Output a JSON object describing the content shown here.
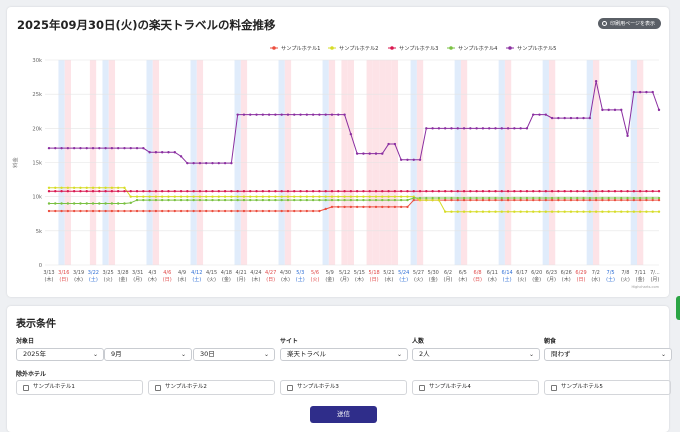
{
  "page": {
    "title": "2025年09月30日(火)の楽天トラベルの料金推移",
    "print_label": "印刷用ページを表示"
  },
  "chart_data": {
    "type": "line",
    "title": "",
    "ylabel": "料金",
    "ylim": [
      0,
      30000
    ],
    "yticks": [
      "0",
      "5k",
      "10k",
      "15k",
      "20k",
      "25k",
      "30k"
    ],
    "yvalues": [
      0,
      5000,
      10000,
      15000,
      20000,
      25000,
      30000
    ],
    "legend_position": "top",
    "credit": "Highcharts.com",
    "x_labels": [
      {
        "d": "3/13",
        "w": "木"
      },
      {
        "d": "3/16",
        "w": "日"
      },
      {
        "d": "3/19",
        "w": "水"
      },
      {
        "d": "3/22",
        "w": "土"
      },
      {
        "d": "3/25",
        "w": "火"
      },
      {
        "d": "3/28",
        "w": "金"
      },
      {
        "d": "3/31",
        "w": "月"
      },
      {
        "d": "4/3",
        "w": "木"
      },
      {
        "d": "4/6",
        "w": "日"
      },
      {
        "d": "4/9",
        "w": "水"
      },
      {
        "d": "4/12",
        "w": "土"
      },
      {
        "d": "4/15",
        "w": "火"
      },
      {
        "d": "4/18",
        "w": "金"
      },
      {
        "d": "4/21",
        "w": "月"
      },
      {
        "d": "4/24",
        "w": "木"
      },
      {
        "d": "4/27",
        "w": "日"
      },
      {
        "d": "4/30",
        "w": "水"
      },
      {
        "d": "5/3",
        "w": "土"
      },
      {
        "d": "5/6",
        "w": "火"
      },
      {
        "d": "5/9",
        "w": "金"
      },
      {
        "d": "5/12",
        "w": "月"
      },
      {
        "d": "5/15",
        "w": "木"
      },
      {
        "d": "5/18",
        "w": "日"
      },
      {
        "d": "5/21",
        "w": "水"
      },
      {
        "d": "5/24",
        "w": "土"
      },
      {
        "d": "5/27",
        "w": "火"
      },
      {
        "d": "5/30",
        "w": "金"
      },
      {
        "d": "6/2",
        "w": "月"
      },
      {
        "d": "6/5",
        "w": "木"
      },
      {
        "d": "6/8",
        "w": "日"
      },
      {
        "d": "6/11",
        "w": "水"
      },
      {
        "d": "6/14",
        "w": "土"
      },
      {
        "d": "6/17",
        "w": "火"
      },
      {
        "d": "6/20",
        "w": "金"
      },
      {
        "d": "6/23",
        "w": "月"
      },
      {
        "d": "6/26",
        "w": "木"
      },
      {
        "d": "6/29",
        "w": "日"
      },
      {
        "d": "7/2",
        "w": "水"
      },
      {
        "d": "7/5",
        "w": "土"
      },
      {
        "d": "7/8",
        "w": "火"
      },
      {
        "d": "7/11",
        "w": "金"
      },
      {
        "d": "7/...",
        "w": "月"
      }
    ],
    "series": [
      {
        "name": "サンプルホテル1",
        "color": "#ec4d3d",
        "segments": [
          [
            0,
            7900
          ],
          [
            37,
            7900
          ],
          [
            39,
            7900
          ],
          [
            43.5,
            7900
          ],
          [
            44.5,
            8500
          ],
          [
            57,
            8500
          ],
          [
            57.3,
            9500
          ],
          [
            66,
            9500
          ]
        ]
      },
      {
        "name": "サンプルホテル2",
        "color": "#d6dc25",
        "segments": [
          [
            0,
            11300
          ],
          [
            12.5,
            11300
          ],
          [
            13,
            10000
          ],
          [
            58,
            10000
          ],
          [
            58.5,
            9500
          ],
          [
            62,
            9500
          ],
          [
            62.5,
            7800
          ],
          [
            66,
            7800
          ]
        ]
      },
      {
        "name": "サンプルホテル3",
        "color": "#d9174f",
        "segments": [
          [
            0,
            10800
          ],
          [
            66,
            10800
          ]
        ]
      },
      {
        "name": "サンプルホテル4",
        "color": "#7ac142",
        "segments": [
          [
            0,
            9000
          ],
          [
            12.8,
            9000
          ],
          [
            13.2,
            9200
          ],
          [
            14,
            9500
          ],
          [
            57,
            9500
          ],
          [
            57.5,
            9800
          ],
          [
            66,
            9800
          ]
        ]
      },
      {
        "name": "サンプルホテル5",
        "color": "#8a2ea0",
        "segments": [
          [
            0,
            17100
          ],
          [
            15,
            17100
          ],
          [
            15.5,
            16500
          ],
          [
            20,
            16500
          ],
          [
            20.5,
            15900
          ],
          [
            21.5,
            15900
          ],
          [
            22,
            14900
          ],
          [
            29,
            14900
          ],
          [
            29.5,
            20000
          ],
          [
            30,
            22000
          ],
          [
            47.8,
            22000
          ],
          [
            48.2,
            16300
          ],
          [
            53.5,
            16300
          ],
          [
            54,
            17700
          ],
          [
            55,
            17700
          ],
          [
            55.5,
            15400
          ],
          [
            59,
            15400
          ],
          [
            59.5,
            20000
          ],
          [
            76,
            20000
          ],
          [
            76.5,
            23400
          ],
          [
            77,
            22000
          ],
          [
            79,
            22000
          ],
          [
            79.5,
            22000
          ],
          [
            80,
            21500
          ],
          [
            86.5,
            21500
          ],
          [
            87,
            26900
          ],
          [
            87.5,
            21500
          ],
          [
            88,
            22700
          ],
          [
            91,
            22700
          ],
          [
            91.5,
            18900
          ],
          [
            92.5,
            18900
          ],
          [
            93,
            25300
          ],
          [
            96,
            25300
          ],
          [
            96.5,
            22700
          ],
          [
            98,
            22700
          ]
        ]
      }
    ]
  },
  "conditions": {
    "title": "表示条件",
    "date_label": "対象日",
    "year": "2025年",
    "month": "9月",
    "day": "30日",
    "site_label": "サイト",
    "site": "楽天トラベル",
    "people_label": "人数",
    "people": "2人",
    "meal_label": "朝食",
    "meal": "問わず",
    "exclude_label": "除外ホテル",
    "exclude": [
      "サンプルホテル1",
      "サンプルホテル2",
      "サンプルホテル3",
      "サンプルホテル4",
      "サンプルホテル5"
    ],
    "submit_label": "送信"
  }
}
